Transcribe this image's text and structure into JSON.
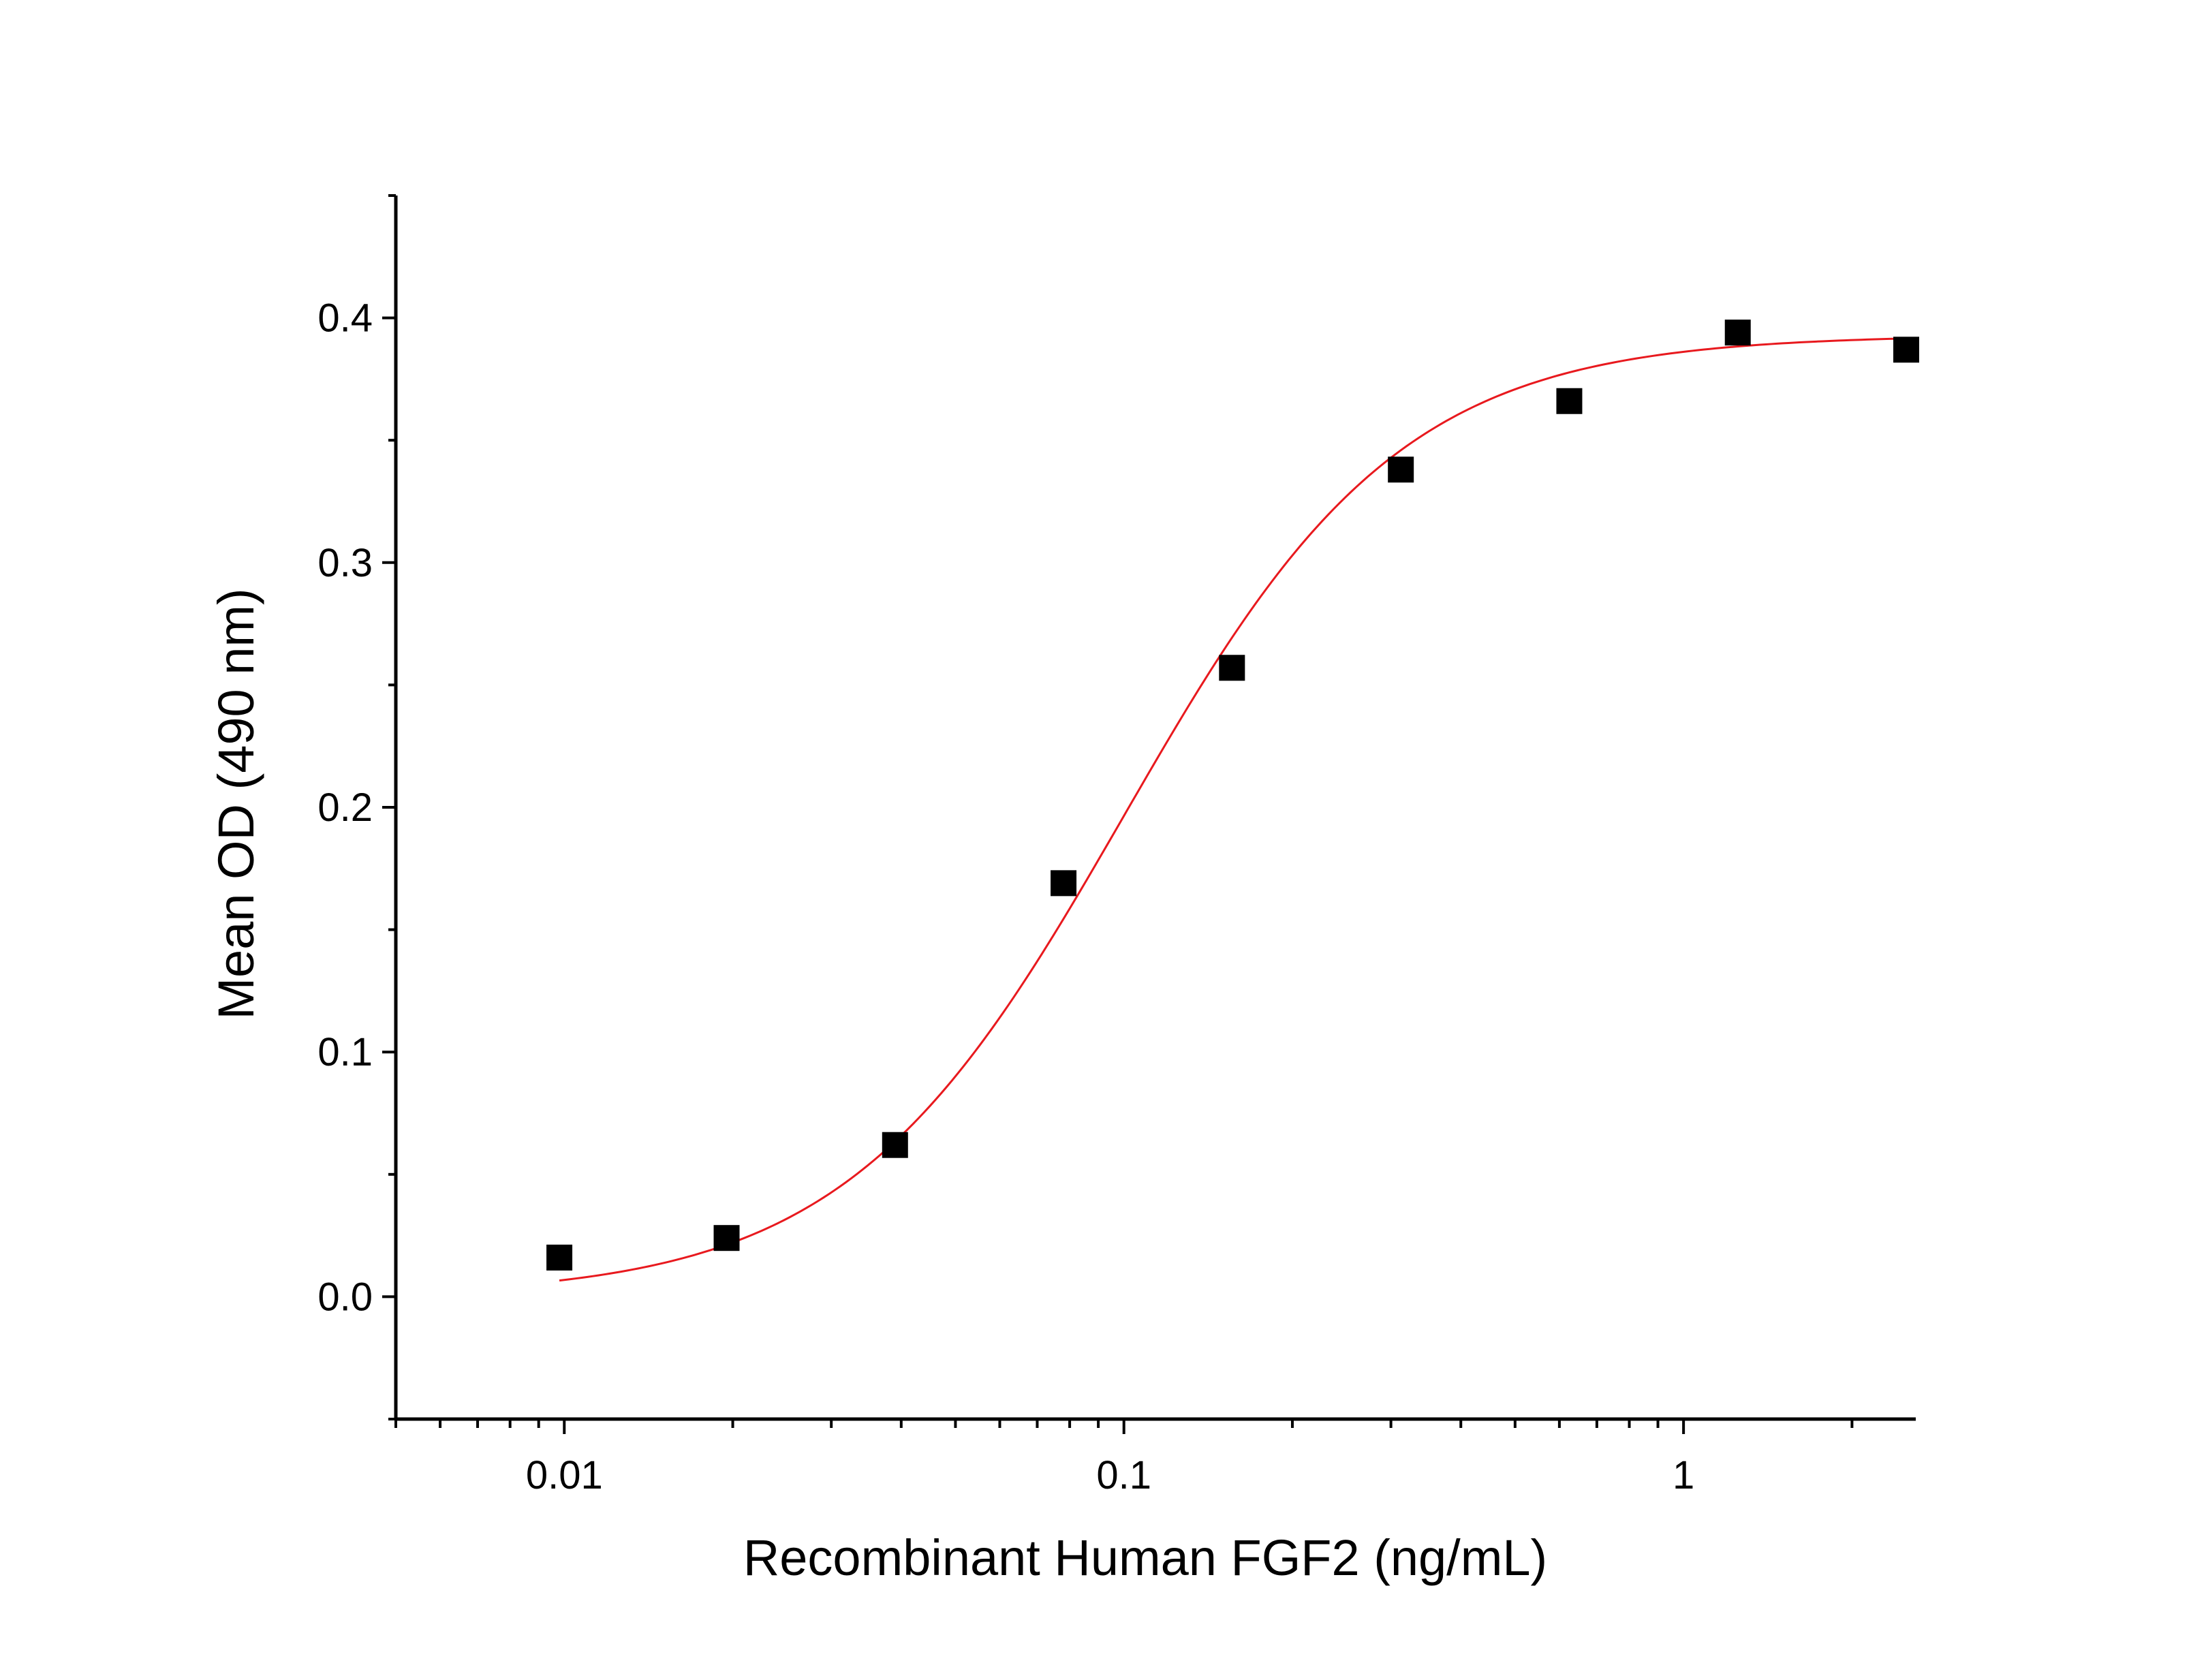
{
  "chart_data": {
    "type": "scatter",
    "title": "",
    "xlabel": "Recombinant Human FGF2 (ng/mL)",
    "ylabel": "Mean OD (490 nm)",
    "xscale": "log",
    "xlim": [
      0.005,
      2.6
    ],
    "ylim": [
      -0.05,
      0.45
    ],
    "xticks": [
      {
        "value": 0.01,
        "label": "0.01"
      },
      {
        "value": 0.1,
        "label": "0.1"
      },
      {
        "value": 1,
        "label": "1"
      }
    ],
    "yticks": [
      {
        "value": 0.0,
        "label": "0.0"
      },
      {
        "value": 0.1,
        "label": "0.1"
      },
      {
        "value": 0.2,
        "label": "0.2"
      },
      {
        "value": 0.3,
        "label": "0.3"
      },
      {
        "value": 0.4,
        "label": "0.4"
      }
    ],
    "grid": false,
    "legend": "none",
    "series": [
      {
        "type": "scatter",
        "marker": "square",
        "color": "#000000",
        "x": [
          0.0098,
          0.0195,
          0.039,
          0.078,
          0.156,
          0.3125,
          0.625,
          1.25,
          2.5
        ],
        "y": [
          0.016,
          0.024,
          0.062,
          0.169,
          0.257,
          0.338,
          0.366,
          0.394,
          0.387
        ]
      },
      {
        "type": "line",
        "color": "#e8191e",
        "fit": "4-parameter logistic",
        "params": {
          "bottom": 0.0,
          "top": 0.393,
          "ec50": 0.1,
          "hill": 1.75
        },
        "x_range": [
          0.0098,
          2.5
        ]
      }
    ]
  }
}
